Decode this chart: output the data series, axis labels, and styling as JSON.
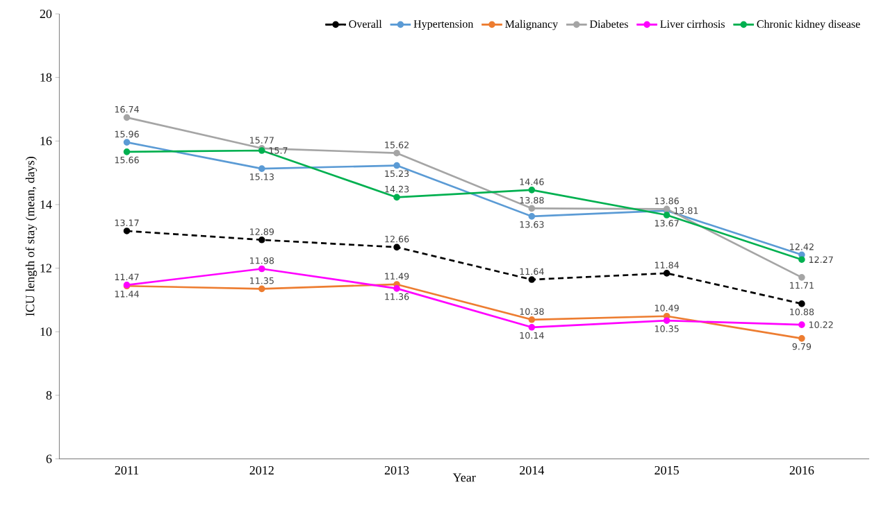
{
  "chart_data": {
    "type": "line",
    "xlabel": "Year",
    "ylabel": "ICU length of stay (mean, days)",
    "categories": [
      "2011",
      "2012",
      "2013",
      "2014",
      "2015",
      "2016"
    ],
    "series": [
      {
        "name": "Overall",
        "color": "#000000",
        "line_style": "dashed",
        "values": [
          13.17,
          12.89,
          12.66,
          11.64,
          11.84,
          10.88
        ]
      },
      {
        "name": "Hypertension",
        "color": "#5b9bd5",
        "values": [
          15.96,
          15.13,
          15.23,
          13.63,
          13.81,
          12.42
        ]
      },
      {
        "name": "Malignancy",
        "color": "#ed7d31",
        "values": [
          11.44,
          11.35,
          11.49,
          10.38,
          10.49,
          9.79
        ]
      },
      {
        "name": "Diabetes",
        "color": "#a5a5a5",
        "values": [
          16.74,
          15.77,
          15.62,
          13.88,
          13.86,
          11.71
        ]
      },
      {
        "name": "Liver cirrhosis",
        "color": "#ff00ff",
        "values": [
          11.47,
          11.98,
          11.36,
          10.14,
          10.35,
          10.22
        ]
      },
      {
        "name": "Chronic kidney disease",
        "color": "#00b050",
        "values": [
          15.66,
          15.7,
          14.23,
          14.46,
          13.67,
          12.27
        ]
      }
    ],
    "ylim": [
      6,
      20
    ],
    "yticks": [
      6,
      8,
      10,
      12,
      14,
      16,
      18,
      20
    ],
    "grid": false,
    "legend": "top right",
    "marker": "circle",
    "line_style": "solid",
    "data_labels": true
  }
}
